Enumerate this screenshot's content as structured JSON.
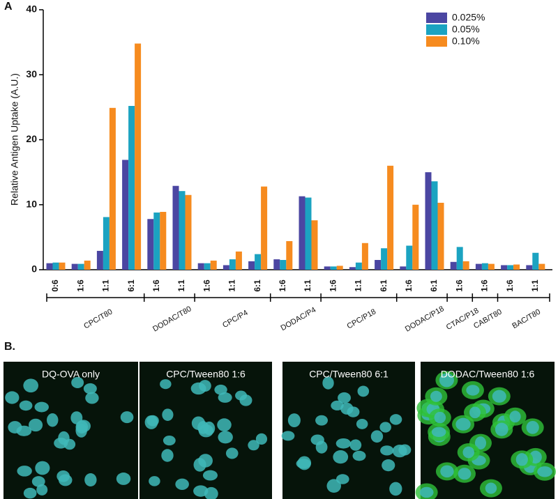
{
  "chart_data": {
    "type": "bar",
    "panel_label": "A",
    "y_label": "Relative Antigen Uptake (A.U.)",
    "category_groups": [
      {
        "name": "CPC/T80",
        "categories": [
          "0:6",
          "1:6",
          "1:1",
          "6:1"
        ]
      },
      {
        "name": "DODAC/T80",
        "categories": [
          "1:6",
          "1:1"
        ]
      },
      {
        "name": "CPC/P4",
        "categories": [
          "1:6",
          "1:1",
          "6:1"
        ]
      },
      {
        "name": "DODAC/P4",
        "categories": [
          "1:6",
          "1:1"
        ]
      },
      {
        "name": "CPC/P18",
        "categories": [
          "1:6",
          "1:1",
          "6:1"
        ]
      },
      {
        "name": "DODAC/P18",
        "categories": [
          "1:6",
          "6:1"
        ]
      },
      {
        "name": "CTAC/P18",
        "categories": [
          "1:6"
        ]
      },
      {
        "name": "CAB/T80",
        "categories": [
          "1:6"
        ]
      },
      {
        "name": "BAC/T80",
        "categories": [
          "1:6",
          "1:1"
        ]
      }
    ],
    "series": [
      {
        "name": "0.025%",
        "color": "#4b46a2",
        "values": [
          1.0,
          0.9,
          2.9,
          16.9,
          7.8,
          12.9,
          1.0,
          0.7,
          1.3,
          1.6,
          11.3,
          0.5,
          0.4,
          1.5,
          0.5,
          15.0,
          1.2,
          0.9,
          0.7,
          0.7
        ]
      },
      {
        "name": "0.05%",
        "color": "#1ba3c1",
        "values": [
          1.1,
          0.9,
          8.1,
          25.2,
          8.8,
          12.1,
          1.0,
          1.6,
          2.4,
          1.5,
          11.1,
          0.5,
          1.1,
          3.3,
          3.7,
          13.6,
          3.5,
          1.0,
          0.7,
          2.6
        ]
      },
      {
        "name": "0.10%",
        "color": "#f68b1f",
        "values": [
          1.1,
          1.4,
          24.9,
          34.8,
          8.9,
          11.5,
          1.4,
          2.8,
          12.8,
          4.4,
          7.6,
          0.6,
          4.1,
          16.0,
          10.0,
          10.3,
          1.3,
          0.9,
          0.8,
          0.9
        ]
      }
    ],
    "ylim": [
      0,
      40
    ],
    "yticks": [
      0,
      10,
      20,
      30,
      40
    ],
    "legend": "upper right"
  },
  "images": {
    "panel_label": "B.",
    "captions": [
      "DQ-OVA only",
      "CPC/Tween80 1:6",
      "CPC/Tween80 6:1",
      "DODAC/Tween80 1:6"
    ]
  }
}
